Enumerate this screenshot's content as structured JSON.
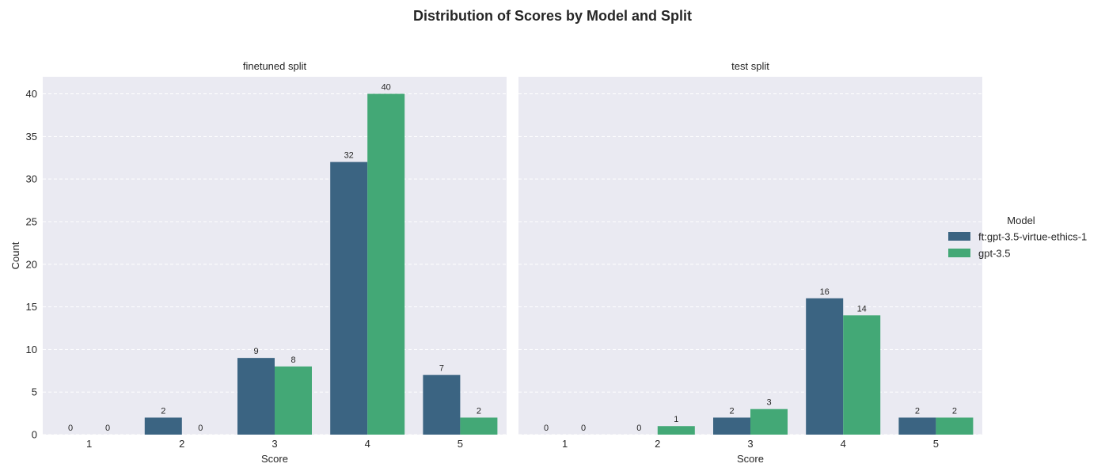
{
  "chart_data": {
    "type": "bar",
    "title": "Distribution of Scores by Model and Split",
    "xlabel": "Score",
    "ylabel": "Count",
    "ylim": [
      0,
      42
    ],
    "yticks": [
      0,
      5,
      10,
      15,
      20,
      25,
      30,
      35,
      40
    ],
    "categories": [
      "1",
      "2",
      "3",
      "4",
      "5"
    ],
    "grid": true,
    "legend": {
      "title": "Model",
      "placement": "right",
      "entries": [
        {
          "name": "ft:gpt-3.5-virtue-ethics-1",
          "color": "#3b6482"
        },
        {
          "name": "gpt-3.5",
          "color": "#43a876"
        }
      ]
    },
    "panels": [
      {
        "title": "finetuned split",
        "series": [
          {
            "name": "ft:gpt-3.5-virtue-ethics-1",
            "values": [
              0,
              2,
              9,
              32,
              7
            ]
          },
          {
            "name": "gpt-3.5",
            "values": [
              0,
              0,
              8,
              40,
              2
            ]
          }
        ]
      },
      {
        "title": "test split",
        "series": [
          {
            "name": "ft:gpt-3.5-virtue-ethics-1",
            "values": [
              0,
              0,
              2,
              16,
              2
            ]
          },
          {
            "name": "gpt-3.5",
            "values": [
              0,
              1,
              3,
              14,
              2
            ]
          }
        ]
      }
    ],
    "colors": {
      "background": "#eaeaf2",
      "grid": "#ffffff",
      "series": [
        "#3b6482",
        "#43a876"
      ]
    }
  }
}
